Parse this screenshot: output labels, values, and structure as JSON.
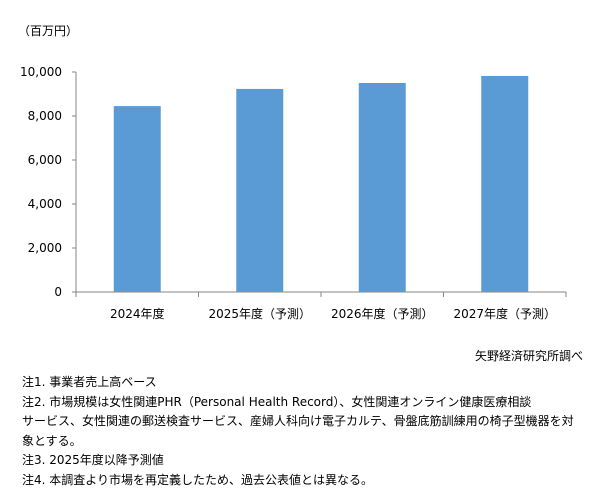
{
  "chart_data": {
    "type": "bar",
    "ylabel": "（百万円）",
    "categories": [
      "2024年度",
      "2025年度（予測）",
      "2026年度（予測）",
      "2027年度（予測）"
    ],
    "values": [
      8450,
      9230,
      9500,
      9820
    ],
    "ylim": [
      0,
      10000
    ],
    "yticks": [
      "0",
      "2,000",
      "4,000",
      "6,000",
      "8,000",
      "10,000"
    ],
    "ytick_values": [
      0,
      2000,
      4000,
      6000,
      8000,
      10000
    ],
    "grid": false,
    "bar_color": "#5b9bd5",
    "source": "矢野経済研究所調べ"
  },
  "notes": [
    "注1. 事業者売上高ベース",
    "注2. 市場規模は女性関連PHR（Personal Health Record）、女性関連オンライン健康医療相談",
    "サービス、女性関連の郵送検査サービス、産婦人科向け電子カルテ、骨盤底筋訓練用の椅子型機器を対",
    "象とする。",
    "注3. 2025年度以降予測値",
    "注4. 本調査より市場を再定義したため、過去公表値とは異なる。"
  ]
}
